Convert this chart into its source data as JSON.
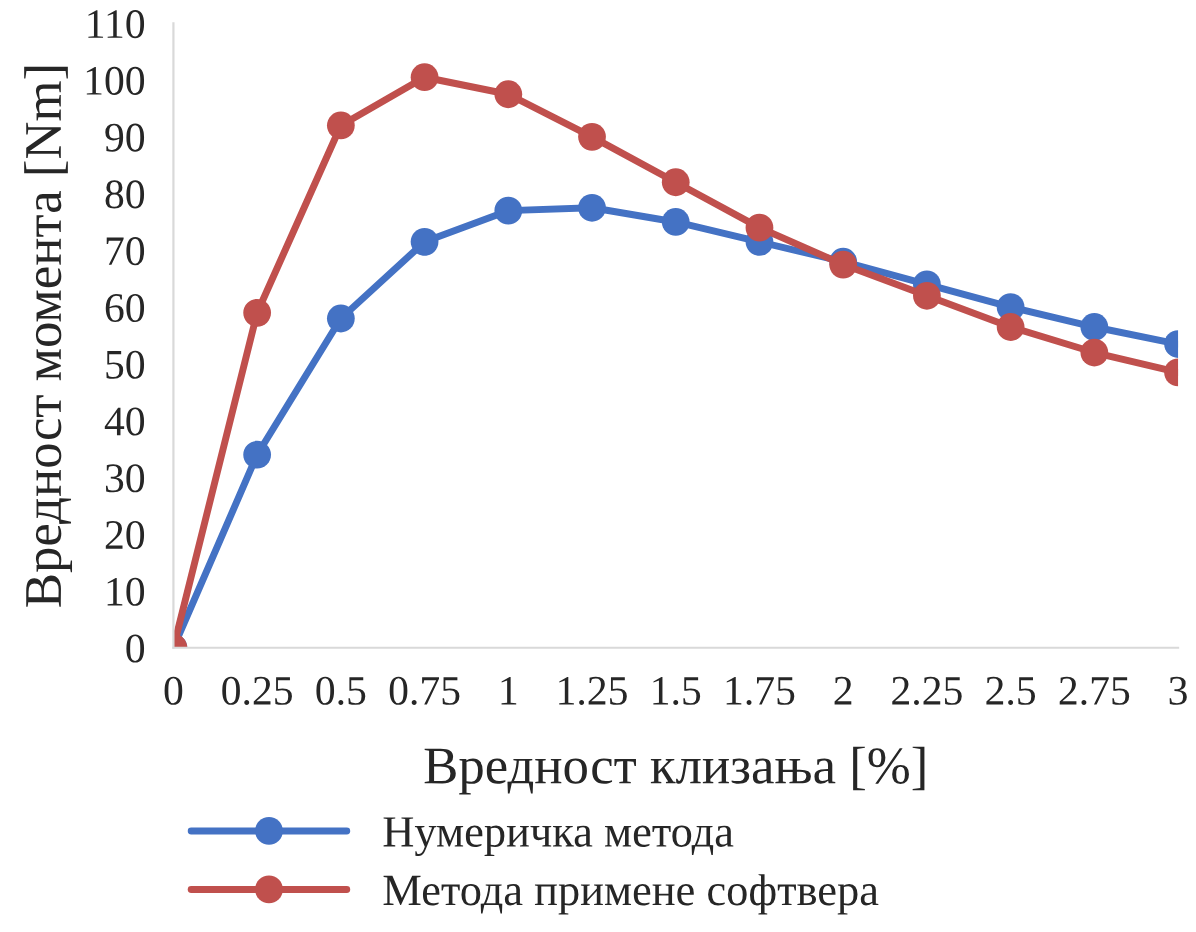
{
  "chart_data": {
    "type": "line",
    "xlabel": "Вредност клизања [%]",
    "ylabel": "Вредност момента [Nm]",
    "categories": [
      "0",
      "0.25",
      "0.5",
      "0.75",
      "1",
      "1.25",
      "1.5",
      "1.75",
      "2",
      "2.25",
      "2.5",
      "2.75",
      "3"
    ],
    "series": [
      {
        "name": "Нумеричка метода",
        "color": "#4472c4",
        "values": [
          0,
          34,
          58,
          71.5,
          77,
          77.5,
          75,
          71.5,
          68,
          64,
          60,
          56.5,
          53.5
        ]
      },
      {
        "name": "Метода примене софтвера",
        "color": "#c0504d",
        "values": [
          0,
          59,
          92,
          100.5,
          97.5,
          90,
          82,
          74,
          67.5,
          62,
          56.5,
          52,
          48.5
        ]
      }
    ],
    "ylim": [
      0,
      110
    ],
    "yticks": [
      0,
      10,
      20,
      30,
      40,
      50,
      60,
      70,
      80,
      90,
      100,
      110
    ],
    "grid": false,
    "legend": "bottom",
    "marker": "circle",
    "line_style": "solid"
  }
}
